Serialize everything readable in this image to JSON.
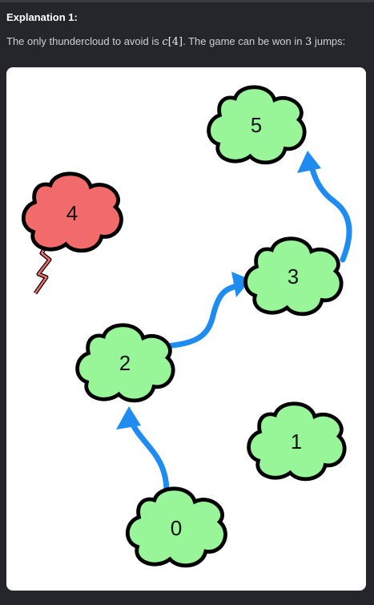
{
  "explanation": {
    "heading": "Explanation 1:",
    "text_before_math": "The only thundercloud to avoid is ",
    "math_var": "c",
    "math_index": "[4]",
    "text_middle": ". The game can be won in ",
    "jump_count": "3",
    "text_after": " jumps:"
  },
  "diagram": {
    "clouds": [
      {
        "label": "0",
        "type": "cumulus"
      },
      {
        "label": "1",
        "type": "cumulus"
      },
      {
        "label": "2",
        "type": "cumulus"
      },
      {
        "label": "3",
        "type": "cumulus"
      },
      {
        "label": "4",
        "type": "thundercloud"
      },
      {
        "label": "5",
        "type": "cumulus"
      }
    ],
    "jumps": [
      {
        "from": "0",
        "to": "2"
      },
      {
        "from": "2",
        "to": "3"
      },
      {
        "from": "3",
        "to": "5"
      }
    ],
    "colors": {
      "safe_cloud": "#98f598",
      "thundercloud": "#f26b6b",
      "lightning": "#f26b6b",
      "arrow": "#1e8cf0",
      "outline": "#000000"
    }
  }
}
